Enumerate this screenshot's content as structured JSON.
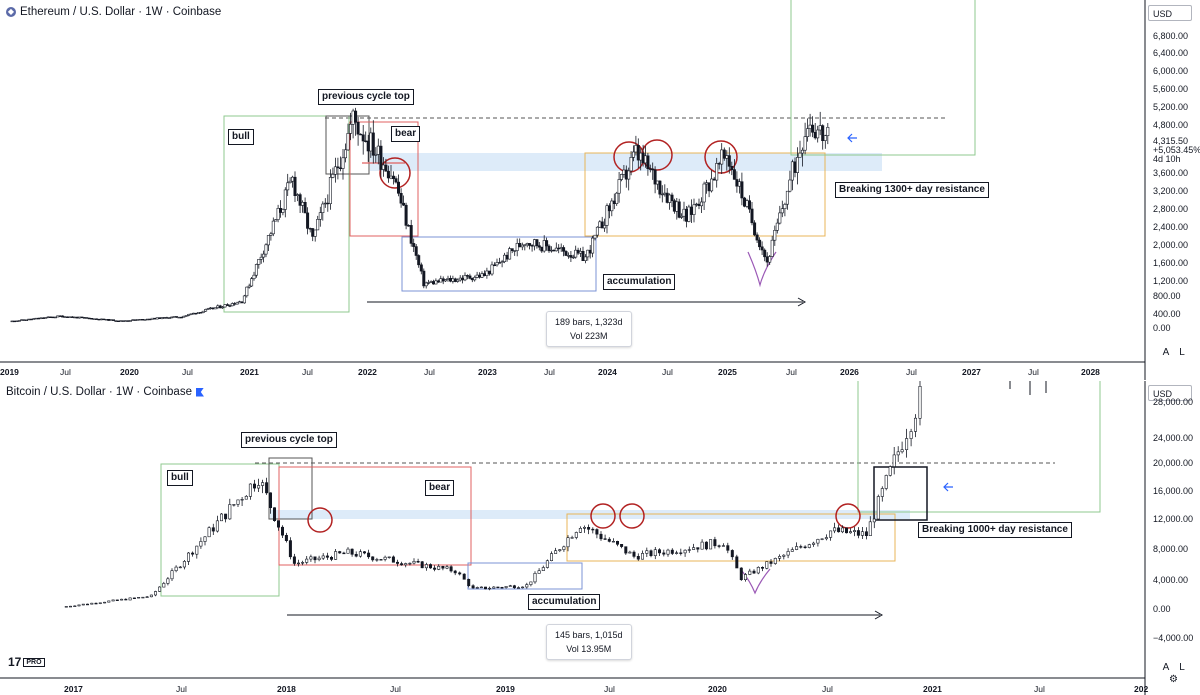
{
  "eth": {
    "title": "Ethereum / U.S. Dollar · 1W · Coinbase",
    "currency": "USD",
    "y_ticks": [
      "6,800.00",
      "6,400.00",
      "6,000.00",
      "5,600.00",
      "5,200.00",
      "4,800.00",
      "3,600.00",
      "3,200.00",
      "2,800.00",
      "2,400.00",
      "2,000.00",
      "1,600.00",
      "1,200.00",
      "800.00",
      "400.00",
      "0.00"
    ],
    "last_price": "4,315.50",
    "change": "+5,053.45%",
    "countdown": "4d 10h",
    "x_ticks": [
      {
        "label": "2019",
        "bold": true
      },
      {
        "label": "Jul",
        "bold": false
      },
      {
        "label": "2020",
        "bold": true
      },
      {
        "label": "Jul",
        "bold": false
      },
      {
        "label": "2021",
        "bold": true
      },
      {
        "label": "Jul",
        "bold": false
      },
      {
        "label": "2022",
        "bold": true
      },
      {
        "label": "Jul",
        "bold": false
      },
      {
        "label": "2023",
        "bold": true
      },
      {
        "label": "Jul",
        "bold": false
      },
      {
        "label": "2024",
        "bold": true
      },
      {
        "label": "Jul",
        "bold": false
      },
      {
        "label": "2025",
        "bold": true
      },
      {
        "label": "Jul",
        "bold": false
      },
      {
        "label": "2026",
        "bold": true
      },
      {
        "label": "Jul",
        "bold": false
      },
      {
        "label": "2027",
        "bold": true
      },
      {
        "label": "Jul",
        "bold": false
      },
      {
        "label": "2028",
        "bold": true
      }
    ],
    "annotations": {
      "previous_cycle_top": "previous cycle top",
      "bull": "bull",
      "bear": "bear",
      "accumulation": "accumulation",
      "breaking": "Breaking 1300+ day resistance"
    },
    "range": {
      "bars": "189 bars, 1,323d",
      "vol": "Vol 223M"
    },
    "auto_label": "A",
    "log_label": "L"
  },
  "btc": {
    "title": "Bitcoin / U.S. Dollar · 1W · Coinbase",
    "currency": "USD",
    "y_ticks": [
      "28,000.00",
      "24,000.00",
      "20,000.00",
      "16,000.00",
      "12,000.00",
      "8,000.00",
      "4,000.00",
      "0.00",
      "−4,000.00"
    ],
    "x_ticks": [
      {
        "label": "2017",
        "bold": true
      },
      {
        "label": "Jul",
        "bold": false
      },
      {
        "label": "2018",
        "bold": true
      },
      {
        "label": "Jul",
        "bold": false
      },
      {
        "label": "2019",
        "bold": true
      },
      {
        "label": "Jul",
        "bold": false
      },
      {
        "label": "2020",
        "bold": true
      },
      {
        "label": "Jul",
        "bold": false
      },
      {
        "label": "2021",
        "bold": true
      },
      {
        "label": "Jul",
        "bold": false
      },
      {
        "label": "202",
        "bold": true
      }
    ],
    "annotations": {
      "previous_cycle_top": "previous cycle top",
      "bull": "bull",
      "bear": "bear",
      "accumulation": "accumulation",
      "breaking": "Breaking 1000+ day resistance"
    },
    "range": {
      "bars": "145 bars, 1,015d",
      "vol": "Vol 13.95M"
    },
    "auto_label": "A",
    "log_label": "L",
    "logo": "17",
    "logo_badge": "PRO"
  },
  "chart_data": [
    {
      "type": "candlestick",
      "title": "Ethereum / U.S. Dollar · 1W · Coinbase",
      "ylim": [
        0,
        7000
      ],
      "x_range": [
        "2019-01",
        "2028-01"
      ],
      "price_path": [
        {
          "t": "2019-01",
          "v": 130
        },
        {
          "t": "2019-06",
          "v": 250
        },
        {
          "t": "2019-12",
          "v": 140
        },
        {
          "t": "2020-06",
          "v": 240
        },
        {
          "t": "2020-12",
          "v": 600
        },
        {
          "t": "2021-05",
          "v": 3400
        },
        {
          "t": "2021-07",
          "v": 2000
        },
        {
          "t": "2021-11",
          "v": 4800
        },
        {
          "t": "2022-03",
          "v": 3500
        },
        {
          "t": "2022-06",
          "v": 1000
        },
        {
          "t": "2022-12",
          "v": 1200
        },
        {
          "t": "2023-04",
          "v": 2000
        },
        {
          "t": "2023-10",
          "v": 1600
        },
        {
          "t": "2024-03",
          "v": 4000
        },
        {
          "t": "2024-08",
          "v": 2500
        },
        {
          "t": "2024-12",
          "v": 4000
        },
        {
          "t": "2025-04",
          "v": 1500
        },
        {
          "t": "2025-08",
          "v": 4800
        },
        {
          "t": "2025-10",
          "v": 4315.5
        }
      ],
      "levels": {
        "previous_high": 4800,
        "resistance_band": [
          3700,
          4100
        ]
      }
    },
    {
      "type": "candlestick",
      "title": "Bitcoin / U.S. Dollar · 1W · Coinbase",
      "ylim": [
        -4000,
        30000
      ],
      "x_range": [
        "2017-01",
        "2022-01"
      ],
      "price_path": [
        {
          "t": "2017-01",
          "v": 1000
        },
        {
          "t": "2017-06",
          "v": 2500
        },
        {
          "t": "2017-12",
          "v": 19000
        },
        {
          "t": "2018-02",
          "v": 7000
        },
        {
          "t": "2018-05",
          "v": 8500
        },
        {
          "t": "2018-11",
          "v": 6000
        },
        {
          "t": "2018-12",
          "v": 3500
        },
        {
          "t": "2019-03",
          "v": 4000
        },
        {
          "t": "2019-06",
          "v": 12500
        },
        {
          "t": "2019-09",
          "v": 8000
        },
        {
          "t": "2020-02",
          "v": 10000
        },
        {
          "t": "2020-03",
          "v": 5000
        },
        {
          "t": "2020-08",
          "v": 11500
        },
        {
          "t": "2020-10",
          "v": 11000
        },
        {
          "t": "2020-12",
          "v": 24000
        },
        {
          "t": "2021-01",
          "v": 30000
        }
      ],
      "levels": {
        "previous_high": 20000,
        "resistance_band": [
          12200,
          13500
        ]
      }
    }
  ]
}
